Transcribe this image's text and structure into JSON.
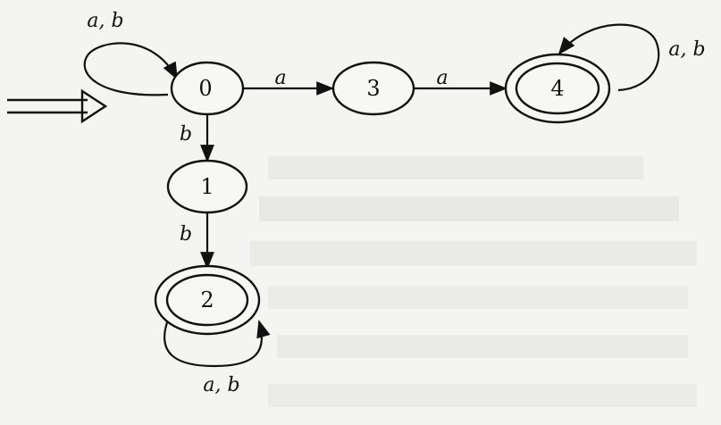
{
  "diagram": {
    "type": "finite-automaton",
    "states": [
      {
        "id": "0",
        "label": "0",
        "accepting": false,
        "start": true
      },
      {
        "id": "1",
        "label": "1",
        "accepting": false,
        "start": false
      },
      {
        "id": "2",
        "label": "2",
        "accepting": true,
        "start": false
      },
      {
        "id": "3",
        "label": "3",
        "accepting": false,
        "start": false
      },
      {
        "id": "4",
        "label": "4",
        "accepting": true,
        "start": false
      }
    ],
    "transitions": [
      {
        "from": "0",
        "to": "0",
        "label": "a, b"
      },
      {
        "from": "0",
        "to": "3",
        "label": "a"
      },
      {
        "from": "3",
        "to": "4",
        "label": "a"
      },
      {
        "from": "4",
        "to": "4",
        "label": "a, b"
      },
      {
        "from": "0",
        "to": "1",
        "label": "b"
      },
      {
        "from": "1",
        "to": "2",
        "label": "b"
      },
      {
        "from": "2",
        "to": "2",
        "label": "a, b"
      }
    ]
  },
  "colors": {
    "ink": "#111111",
    "paper": "#f4f4f2",
    "bleed": "#d9d9d6"
  }
}
